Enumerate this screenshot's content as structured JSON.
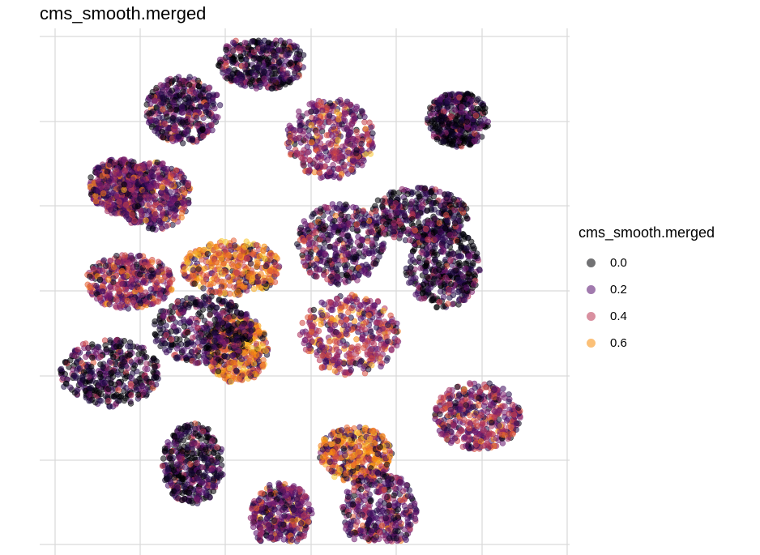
{
  "chart_data": {
    "type": "scatter",
    "title": "cms_smooth.merged",
    "xlabel": "",
    "ylabel": "",
    "axis_tick_labels": "none",
    "grid": true,
    "legend": {
      "title": "cms_smooth.merged",
      "placement": "right",
      "entries": [
        {
          "label": "0.0",
          "value": 0.0,
          "color": "#000004"
        },
        {
          "label": "0.2",
          "value": 0.2,
          "color": "#781C6D"
        },
        {
          "label": "0.4",
          "value": 0.4,
          "color": "#ED6925"
        },
        {
          "label": "0.6",
          "value": 0.6,
          "color": "#FCD434"
        }
      ]
    },
    "colormap": "inferno",
    "color_range": [
      0.0,
      0.7
    ],
    "clusters": [
      {
        "x": 0.12,
        "y": 0.72,
        "value": 0.18
      },
      {
        "x": 0.25,
        "y": 0.88,
        "value": 0.1
      },
      {
        "x": 0.55,
        "y": 0.82,
        "value": 0.25
      },
      {
        "x": 0.35,
        "y": 0.55,
        "value": 0.55
      },
      {
        "x": 0.36,
        "y": 0.38,
        "value": 0.58
      },
      {
        "x": 0.78,
        "y": 0.55,
        "value": 0.03
      },
      {
        "x": 0.14,
        "y": 0.52,
        "value": 0.38
      },
      {
        "x": 0.1,
        "y": 0.33,
        "value": 0.05
      },
      {
        "x": 0.27,
        "y": 0.14,
        "value": 0.04
      },
      {
        "x": 0.6,
        "y": 0.16,
        "value": 0.55
      },
      {
        "x": 0.85,
        "y": 0.24,
        "value": 0.35
      },
      {
        "x": 0.59,
        "y": 0.41,
        "value": 0.28
      },
      {
        "x": 0.81,
        "y": 0.86,
        "value": 0.02
      },
      {
        "x": 0.19,
        "y": 0.7,
        "value": 0.2
      },
      {
        "x": 0.57,
        "y": 0.6,
        "value": 0.12
      },
      {
        "x": 0.73,
        "y": 0.66,
        "value": 0.05
      },
      {
        "x": 0.45,
        "y": 0.03,
        "value": 0.2
      },
      {
        "x": 0.65,
        "y": 0.04,
        "value": 0.15
      },
      {
        "x": 0.41,
        "y": 0.98,
        "value": 0.05
      },
      {
        "x": 0.29,
        "y": 0.42,
        "value": 0.06
      }
    ]
  }
}
